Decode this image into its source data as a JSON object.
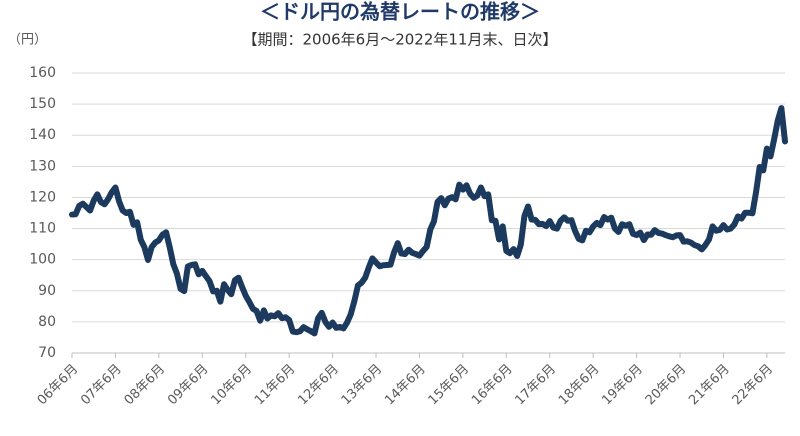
{
  "chart_data": {
    "type": "line",
    "title": "＜ドル円の為替レートの推移＞",
    "subtitle": "【期間：2006年6月～2022年11月末、日次】",
    "y_label": "（円）",
    "color": "#1c3a5e",
    "grid": true,
    "ylim": [
      70,
      160
    ],
    "yticks": [
      70,
      80,
      90,
      100,
      110,
      120,
      130,
      140,
      150,
      160
    ],
    "categories": [
      "06年6月",
      null,
      null,
      null,
      null,
      null,
      null,
      null,
      null,
      null,
      null,
      null,
      "07年6月",
      null,
      null,
      null,
      null,
      null,
      null,
      null,
      null,
      null,
      null,
      null,
      "08年6月",
      null,
      null,
      null,
      null,
      null,
      null,
      null,
      null,
      null,
      null,
      null,
      "09年6月",
      null,
      null,
      null,
      null,
      null,
      null,
      null,
      null,
      null,
      null,
      null,
      "10年6月",
      null,
      null,
      null,
      null,
      null,
      null,
      null,
      null,
      null,
      null,
      null,
      "11年6月",
      null,
      null,
      null,
      null,
      null,
      null,
      null,
      null,
      null,
      null,
      null,
      "12年6月",
      null,
      null,
      null,
      null,
      null,
      null,
      null,
      null,
      null,
      null,
      null,
      "13年6月",
      null,
      null,
      null,
      null,
      null,
      null,
      null,
      null,
      null,
      null,
      null,
      "14年6月",
      null,
      null,
      null,
      null,
      null,
      null,
      null,
      null,
      null,
      null,
      null,
      "15年6月",
      null,
      null,
      null,
      null,
      null,
      null,
      null,
      null,
      null,
      null,
      null,
      "16年6月",
      null,
      null,
      null,
      null,
      null,
      null,
      null,
      null,
      null,
      null,
      null,
      "17年6月",
      null,
      null,
      null,
      null,
      null,
      null,
      null,
      null,
      null,
      null,
      null,
      "18年6月",
      null,
      null,
      null,
      null,
      null,
      null,
      null,
      null,
      null,
      null,
      null,
      "19年6月",
      null,
      null,
      null,
      null,
      null,
      null,
      null,
      null,
      null,
      null,
      null,
      "20年6月",
      null,
      null,
      null,
      null,
      null,
      null,
      null,
      null,
      null,
      null,
      null,
      "21年6月",
      null,
      null,
      null,
      null,
      null,
      null,
      null,
      null,
      null,
      null,
      null,
      "22年6月",
      null,
      null,
      null,
      null,
      null
    ],
    "values": [
      114.5,
      114.6,
      117.3,
      118.0,
      116.9,
      115.8,
      119.0,
      121.0,
      118.5,
      117.8,
      119.5,
      121.7,
      123.2,
      118.8,
      115.8,
      115.0,
      115.4,
      111.2,
      112.0,
      106.4,
      104.0,
      99.9,
      104.0,
      105.5,
      106.2,
      108.0,
      108.8,
      104.0,
      98.5,
      95.5,
      90.6,
      89.9,
      97.8,
      98.3,
      98.5,
      95.3,
      96.4,
      94.7,
      93.1,
      89.8,
      90.0,
      86.5,
      92.1,
      90.3,
      88.9,
      93.4,
      94.2,
      91.2,
      88.4,
      86.4,
      84.2,
      83.5,
      80.4,
      83.7,
      81.1,
      82.1,
      81.8,
      82.8,
      81.2,
      81.5,
      80.6,
      76.9,
      76.7,
      77.0,
      78.3,
      77.6,
      77.0,
      76.3,
      81.2,
      82.9,
      80.0,
      78.4,
      79.8,
      78.1,
      78.4,
      77.9,
      79.8,
      82.4,
      86.6,
      91.7,
      92.6,
      94.2,
      97.5,
      100.4,
      99.1,
      97.9,
      98.2,
      98.3,
      98.4,
      102.4,
      105.3,
      102.0,
      101.8,
      103.2,
      102.2,
      101.8,
      101.3,
      102.8,
      104.1,
      109.7,
      112.3,
      118.6,
      119.8,
      117.5,
      119.6,
      120.1,
      119.4,
      124.1,
      122.5,
      123.9,
      121.2,
      119.9,
      120.6,
      123.2,
      120.4,
      121.0,
      112.7,
      112.5,
      106.5,
      110.7,
      102.8,
      102.1,
      103.4,
      101.2,
      104.8,
      114.0,
      117.1,
      112.9,
      112.8,
      111.4,
      111.5,
      110.8,
      112.4,
      110.3,
      110.0,
      112.5,
      113.6,
      112.5,
      112.7,
      109.2,
      106.7,
      106.2,
      109.3,
      108.8,
      110.7,
      111.8,
      111.1,
      113.7,
      112.9,
      113.5,
      110.0,
      108.9,
      111.4,
      110.9,
      111.4,
      108.3,
      107.9,
      108.7,
      106.3,
      108.1,
      108.0,
      109.5,
      108.6,
      108.4,
      107.9,
      107.5,
      107.2,
      107.8,
      107.9,
      105.8,
      105.9,
      105.5,
      104.7,
      104.3,
      103.3,
      104.7,
      106.5,
      110.7,
      109.3,
      109.6,
      111.1,
      109.7,
      110.0,
      111.3,
      113.9,
      113.2,
      115.1,
      115.1,
      114.9,
      121.7,
      129.8,
      128.7,
      135.7,
      133.2,
      138.7,
      144.7,
      148.7,
      138.0
    ]
  }
}
